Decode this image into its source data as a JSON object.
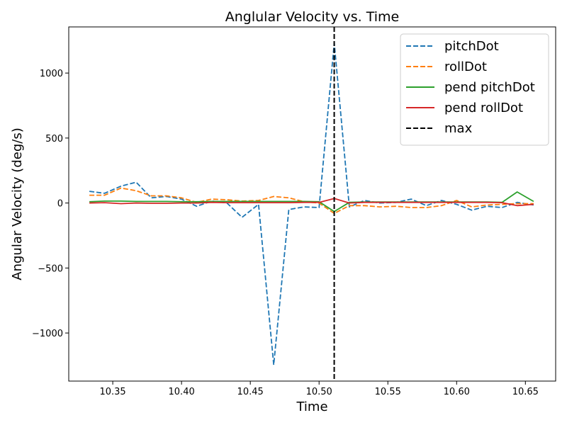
{
  "chart_data": {
    "type": "line",
    "title": "Anglular Velocity vs. Time",
    "xlabel": "Time",
    "ylabel": "Angular Velocity (deg/s)",
    "xlim": [
      10.318,
      10.672
    ],
    "ylim": [
      -1370,
      1355
    ],
    "xticks": [
      10.35,
      10.4,
      10.45,
      10.5,
      10.55,
      10.6,
      10.65
    ],
    "xtick_labels": [
      "10.35",
      "10.40",
      "10.45",
      "10.50",
      "10.55",
      "10.60",
      "10.65"
    ],
    "yticks": [
      -1000,
      -500,
      0,
      500,
      1000
    ],
    "ytick_labels": [
      "−1000",
      "−500",
      "0",
      "500",
      "1000"
    ],
    "grid": false,
    "legend_position": "top-right",
    "x": [
      10.333,
      10.344,
      10.356,
      10.367,
      10.378,
      10.389,
      10.4,
      10.411,
      10.422,
      10.433,
      10.444,
      10.456,
      10.467,
      10.478,
      10.489,
      10.5,
      10.511,
      10.522,
      10.533,
      10.544,
      10.556,
      10.567,
      10.578,
      10.589,
      10.6,
      10.611,
      10.622,
      10.633,
      10.644,
      10.656
    ],
    "series": [
      {
        "name": "pitchDot",
        "color": "#1f77b4",
        "dash": "dashed",
        "values": [
          90,
          75,
          130,
          160,
          40,
          50,
          30,
          -25,
          15,
          0,
          -110,
          -10,
          -1245,
          -50,
          -30,
          -35,
          1230,
          -30,
          20,
          0,
          5,
          30,
          -20,
          20,
          -10,
          -55,
          -25,
          -35,
          5,
          -15
        ]
      },
      {
        "name": "rollDot",
        "color": "#ff7f0e",
        "dash": "dashed",
        "values": [
          60,
          60,
          115,
          95,
          55,
          55,
          40,
          5,
          30,
          25,
          15,
          20,
          50,
          40,
          10,
          0,
          -80,
          -20,
          -20,
          -30,
          -25,
          -35,
          -35,
          -20,
          20,
          -30,
          -15,
          -10,
          -5,
          -5
        ]
      },
      {
        "name": "pend pitchDot",
        "color": "#2ca02c",
        "dash": "solid",
        "values": [
          10,
          15,
          15,
          12,
          12,
          12,
          10,
          10,
          12,
          12,
          12,
          12,
          12,
          12,
          12,
          10,
          -65,
          5,
          8,
          8,
          8,
          8,
          8,
          8,
          8,
          8,
          8,
          5,
          85,
          12
        ]
      },
      {
        "name": "pend rollDot",
        "color": "#d62728",
        "dash": "solid",
        "values": [
          0,
          3,
          -5,
          0,
          -2,
          -2,
          0,
          0,
          5,
          3,
          3,
          3,
          3,
          3,
          5,
          5,
          35,
          0,
          5,
          5,
          5,
          5,
          5,
          5,
          5,
          5,
          5,
          3,
          -20,
          -10
        ]
      }
    ],
    "vline": {
      "name": "max",
      "x": 10.511,
      "color": "#000000",
      "dash": "dashed"
    }
  }
}
